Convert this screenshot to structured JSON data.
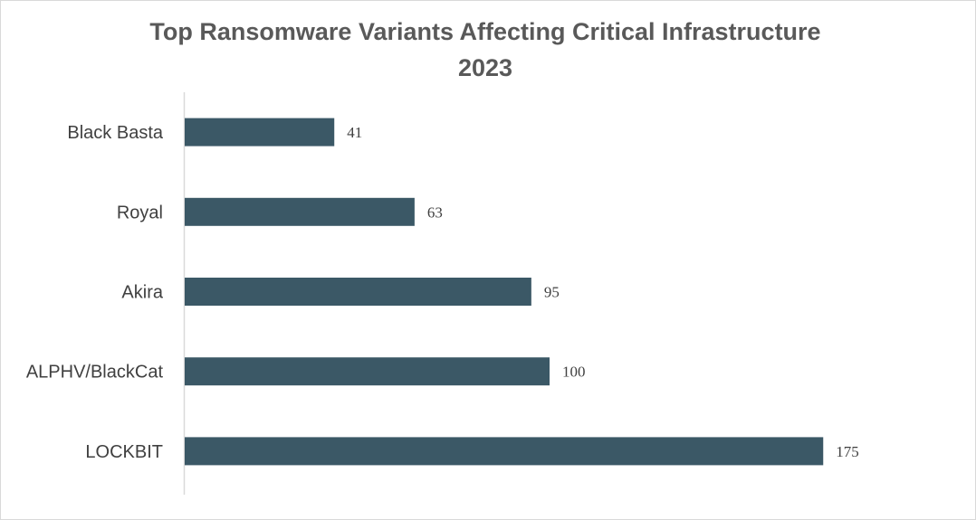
{
  "chart_data": {
    "type": "bar",
    "orientation": "horizontal",
    "title": "Top Ransomware Variants Affecting Critical Infrastructure",
    "subtitle": "2023",
    "categories": [
      "Black Basta",
      "Royal",
      "Akira",
      "ALPHV/BlackCat",
      "LOCKBIT"
    ],
    "values": [
      41,
      63,
      95,
      100,
      175
    ],
    "xlim": [
      0,
      180
    ],
    "grid": false,
    "legend": "none",
    "bar_color": "#3b5866",
    "data_labels": true
  }
}
